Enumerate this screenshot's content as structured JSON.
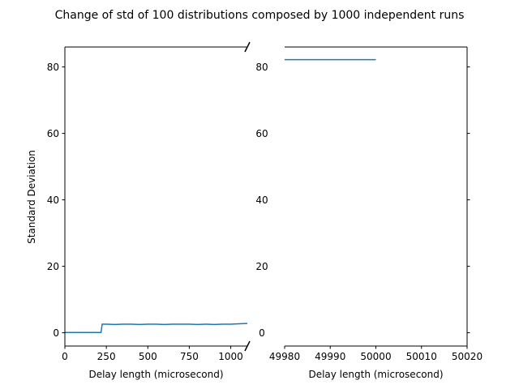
{
  "chart_data": {
    "type": "line",
    "title": "Change of std of 100 distributions composed by 1000 independent runs",
    "ylabel": "Standard Deviation",
    "ylim": [
      -4,
      86
    ],
    "yticks": [
      0,
      20,
      40,
      60,
      80
    ],
    "color": "#1f77b4",
    "panels": [
      {
        "xlabel": "Delay length (microsecond)",
        "xlim": [
          0,
          1100
        ],
        "xticks": [
          0,
          250,
          500,
          750,
          1000
        ],
        "series": [
          {
            "x": [
              0,
              50,
              100,
              150,
              200,
              218,
              225,
              230,
              250,
              300,
              350,
              400,
              450,
              500,
              550,
              600,
              650,
              700,
              750,
              800,
              850,
              900,
              950,
              1000,
              1050,
              1100
            ],
            "y": [
              0.1,
              0.1,
              0.1,
              0.1,
              0.1,
              0.1,
              2.6,
              2.6,
              2.6,
              2.5,
              2.6,
              2.6,
              2.5,
              2.6,
              2.6,
              2.5,
              2.6,
              2.6,
              2.6,
              2.5,
              2.6,
              2.5,
              2.6,
              2.6,
              2.7,
              2.8
            ]
          }
        ]
      },
      {
        "xlabel": "Delay length (microsecond)",
        "xlim": [
          49980,
          50020
        ],
        "xticks": [
          49980,
          49990,
          50000,
          50010,
          50020
        ],
        "series": [
          {
            "x": [
              49980,
              49985,
              49990,
              49995,
              50000
            ],
            "y": [
              82.2,
              82.2,
              82.2,
              82.2,
              82.2
            ]
          }
        ]
      }
    ]
  }
}
